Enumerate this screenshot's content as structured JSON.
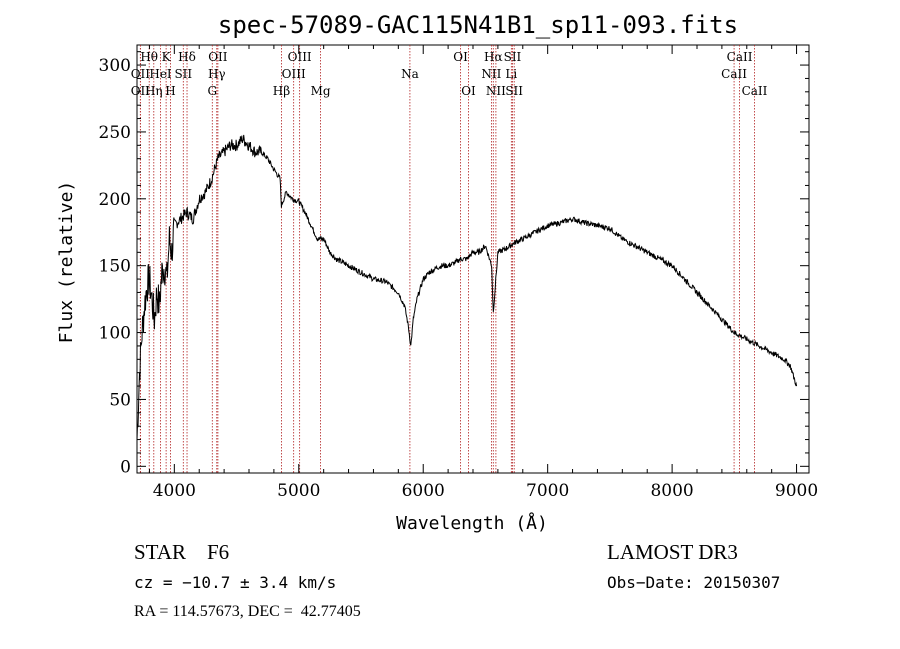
{
  "chart_data": {
    "type": "line",
    "title": "spec-57089-GAC115N41B1_sp11-093.fits",
    "xlabel": "Wavelength (Å)",
    "ylabel": "Flux (relative)",
    "xlim": [
      3700,
      9100
    ],
    "ylim": [
      -5,
      315
    ],
    "xticks": [
      4000,
      5000,
      6000,
      7000,
      8000,
      9000
    ],
    "yticks": [
      0,
      50,
      100,
      150,
      200,
      250,
      300
    ],
    "series": [
      {
        "name": "flux",
        "color": "#000000",
        "x": [
          3700,
          3720,
          3740,
          3760,
          3780,
          3800,
          3820,
          3840,
          3860,
          3880,
          3900,
          3920,
          3940,
          3960,
          3980,
          4000,
          4050,
          4100,
          4150,
          4200,
          4250,
          4300,
          4350,
          4400,
          4450,
          4500,
          4550,
          4600,
          4650,
          4700,
          4750,
          4800,
          4850,
          4860,
          4900,
          4950,
          5000,
          5050,
          5100,
          5150,
          5200,
          5250,
          5300,
          5400,
          5500,
          5600,
          5700,
          5800,
          5850,
          5880,
          5900,
          5920,
          5950,
          6000,
          6050,
          6100,
          6150,
          6200,
          6250,
          6300,
          6350,
          6400,
          6450,
          6500,
          6550,
          6563,
          6600,
          6650,
          6700,
          6750,
          6800,
          6900,
          7000,
          7100,
          7200,
          7300,
          7400,
          7500,
          7600,
          7700,
          7800,
          7900,
          8000,
          8100,
          8200,
          8300,
          8400,
          8500,
          8600,
          8700,
          8800,
          8900,
          8950,
          9000
        ],
        "y": [
          20,
          70,
          100,
          120,
          135,
          140,
          125,
          110,
          130,
          120,
          145,
          150,
          140,
          170,
          160,
          180,
          185,
          190,
          185,
          200,
          205,
          215,
          230,
          235,
          240,
          240,
          245,
          240,
          235,
          235,
          230,
          222,
          215,
          195,
          205,
          200,
          198,
          190,
          180,
          170,
          170,
          160,
          155,
          150,
          145,
          140,
          138,
          130,
          120,
          105,
          90,
          110,
          125,
          140,
          145,
          148,
          150,
          150,
          152,
          155,
          155,
          160,
          160,
          165,
          150,
          115,
          160,
          162,
          165,
          168,
          170,
          175,
          180,
          182,
          185,
          182,
          180,
          178,
          170,
          165,
          160,
          155,
          150,
          140,
          130,
          120,
          110,
          100,
          95,
          90,
          85,
          80,
          75,
          60
        ]
      }
    ],
    "lines": [
      {
        "label": "Hθ",
        "x": 3798,
        "row": 0
      },
      {
        "label": "OII",
        "x": 3727,
        "row": 1
      },
      {
        "label": "OII",
        "x": 3727,
        "row": 2
      },
      {
        "label": "K",
        "x": 3934,
        "row": 0
      },
      {
        "label": "HeI",
        "x": 3889,
        "row": 1
      },
      {
        "label": "Hη",
        "x": 3835,
        "row": 2
      },
      {
        "label": "Hδ",
        "x": 4102,
        "row": 0
      },
      {
        "label": "SII",
        "x": 4072,
        "row": 1
      },
      {
        "label": "H",
        "x": 3969,
        "row": 2
      },
      {
        "label": "OII",
        "x": 4350,
        "row": 0
      },
      {
        "label": "Hγ",
        "x": 4341,
        "row": 1
      },
      {
        "label": "G",
        "x": 4305,
        "row": 2
      },
      {
        "label": "Hβ",
        "x": 4861,
        "row": 2
      },
      {
        "label": "OIII",
        "x": 5007,
        "row": 0
      },
      {
        "label": "OIII",
        "x": 4959,
        "row": 1
      },
      {
        "label": "Mg",
        "x": 5175,
        "row": 2
      },
      {
        "label": "Na",
        "x": 5893,
        "row": 1
      },
      {
        "label": "OI",
        "x": 6300,
        "row": 0
      },
      {
        "label": "OI",
        "x": 6364,
        "row": 2
      },
      {
        "label": "Hα",
        "x": 6563,
        "row": 0
      },
      {
        "label": "NII",
        "x": 6548,
        "row": 1
      },
      {
        "label": "NII",
        "x": 6584,
        "row": 2
      },
      {
        "label": "SII",
        "x": 6717,
        "row": 0
      },
      {
        "label": "Li",
        "x": 6708,
        "row": 1
      },
      {
        "label": "SII",
        "x": 6731,
        "row": 2
      },
      {
        "label": "CaII",
        "x": 8542,
        "row": 0
      },
      {
        "label": "CaII",
        "x": 8498,
        "row": 1
      },
      {
        "label": "CaII",
        "x": 8662,
        "row": 2
      }
    ],
    "grid": false,
    "legend": "none"
  },
  "info": {
    "star_class": "STAR    F6",
    "survey": "LAMOST DR3",
    "cz": "cz = −10.7 ± 3.4 km/s",
    "obs_date": "Obs−Date: 20150307",
    "coords": "RA = 114.57673, DEC =  42.77405"
  },
  "colors": {
    "spectrum": "#000000",
    "line_markers": "#b22222",
    "axes": "#000000"
  }
}
